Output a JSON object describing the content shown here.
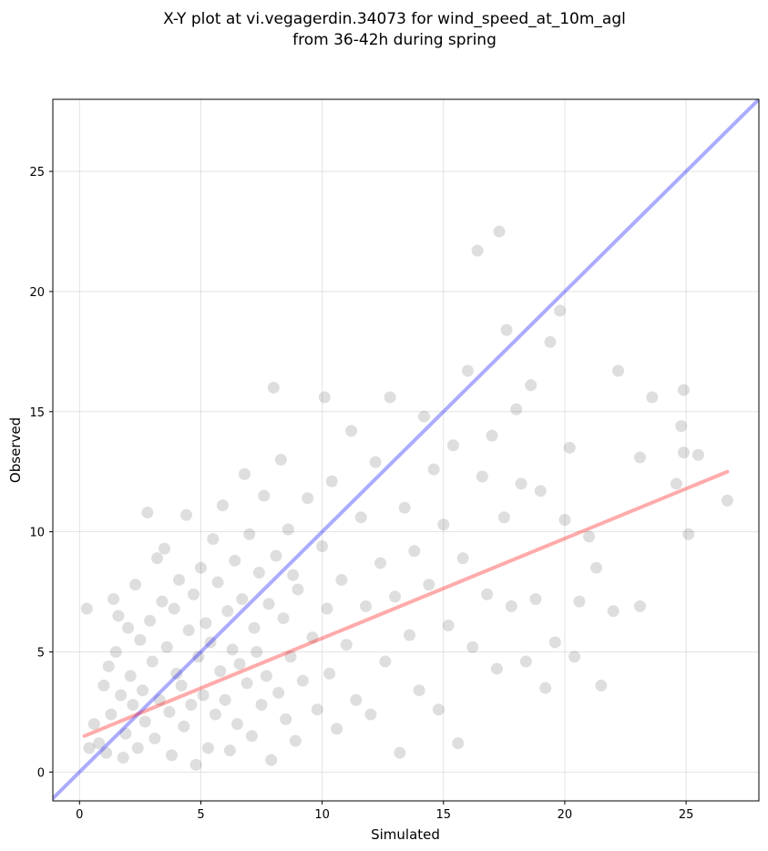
{
  "chart_data": {
    "type": "scatter",
    "title_lines": [
      "X-Y plot at vi.vegagerdin.34073 for wind_speed_at_10m_agl",
      "from 36-42h during spring"
    ],
    "xlabel": "Simulated",
    "ylabel": "Observed",
    "xlim": [
      -1.1,
      28.0
    ],
    "ylim": [
      -1.2,
      28.0
    ],
    "xticks": [
      0,
      5,
      10,
      15,
      20,
      25
    ],
    "yticks": [
      0,
      5,
      10,
      15,
      20,
      25
    ],
    "grid": true,
    "colors": {
      "points": "#000000",
      "identity_line": "#0000ff",
      "fit_line": "#ff0000",
      "grid": "#b0b0b0"
    },
    "identity_line": {
      "x": [
        -1.1,
        28.0
      ],
      "y": [
        -1.1,
        28.0
      ]
    },
    "fit_line": {
      "x": [
        0.2,
        26.7
      ],
      "y": [
        1.5,
        12.5
      ]
    },
    "series": [
      {
        "points": [
          [
            0.3,
            6.8
          ],
          [
            0.4,
            1.0
          ],
          [
            0.6,
            2.0
          ],
          [
            0.8,
            1.2
          ],
          [
            1.0,
            3.6
          ],
          [
            1.1,
            0.8
          ],
          [
            1.2,
            4.4
          ],
          [
            1.3,
            2.4
          ],
          [
            1.4,
            7.2
          ],
          [
            1.5,
            5.0
          ],
          [
            1.6,
            6.5
          ],
          [
            1.7,
            3.2
          ],
          [
            1.8,
            0.6
          ],
          [
            1.9,
            1.6
          ],
          [
            2.0,
            6.0
          ],
          [
            2.1,
            4.0
          ],
          [
            2.2,
            2.8
          ],
          [
            2.3,
            7.8
          ],
          [
            2.4,
            1.0
          ],
          [
            2.5,
            5.5
          ],
          [
            2.6,
            3.4
          ],
          [
            2.7,
            2.1
          ],
          [
            2.8,
            10.8
          ],
          [
            2.9,
            6.3
          ],
          [
            3.0,
            4.6
          ],
          [
            3.1,
            1.4
          ],
          [
            3.2,
            8.9
          ],
          [
            3.3,
            3.0
          ],
          [
            3.4,
            7.1
          ],
          [
            3.5,
            9.3
          ],
          [
            3.6,
            5.2
          ],
          [
            3.7,
            2.5
          ],
          [
            3.8,
            0.7
          ],
          [
            3.9,
            6.8
          ],
          [
            4.0,
            4.1
          ],
          [
            4.1,
            8.0
          ],
          [
            4.2,
            3.6
          ],
          [
            4.3,
            1.9
          ],
          [
            4.4,
            10.7
          ],
          [
            4.5,
            5.9
          ],
          [
            4.6,
            2.8
          ],
          [
            4.7,
            7.4
          ],
          [
            4.8,
            0.3
          ],
          [
            4.9,
            4.8
          ],
          [
            5.0,
            8.5
          ],
          [
            5.1,
            3.2
          ],
          [
            5.2,
            6.2
          ],
          [
            5.3,
            1.0
          ],
          [
            5.4,
            5.4
          ],
          [
            5.5,
            9.7
          ],
          [
            5.6,
            2.4
          ],
          [
            5.7,
            7.9
          ],
          [
            5.8,
            4.2
          ],
          [
            5.9,
            11.1
          ],
          [
            6.0,
            3.0
          ],
          [
            6.1,
            6.7
          ],
          [
            6.2,
            0.9
          ],
          [
            6.3,
            5.1
          ],
          [
            6.4,
            8.8
          ],
          [
            6.5,
            2.0
          ],
          [
            6.6,
            4.5
          ],
          [
            6.7,
            7.2
          ],
          [
            6.8,
            12.4
          ],
          [
            6.9,
            3.7
          ],
          [
            7.0,
            9.9
          ],
          [
            7.1,
            1.5
          ],
          [
            7.2,
            6.0
          ],
          [
            7.3,
            5.0
          ],
          [
            7.4,
            8.3
          ],
          [
            7.5,
            2.8
          ],
          [
            7.6,
            11.5
          ],
          [
            7.7,
            4.0
          ],
          [
            7.8,
            7.0
          ],
          [
            7.9,
            0.5
          ],
          [
            8.0,
            16.0
          ],
          [
            8.1,
            9.0
          ],
          [
            8.2,
            3.3
          ],
          [
            8.3,
            13.0
          ],
          [
            8.4,
            6.4
          ],
          [
            8.5,
            2.2
          ],
          [
            8.6,
            10.1
          ],
          [
            8.7,
            4.8
          ],
          [
            8.8,
            8.2
          ],
          [
            8.9,
            1.3
          ],
          [
            9.0,
            7.6
          ],
          [
            9.2,
            3.8
          ],
          [
            9.4,
            11.4
          ],
          [
            9.6,
            5.6
          ],
          [
            9.8,
            2.6
          ],
          [
            10.0,
            9.4
          ],
          [
            10.1,
            15.6
          ],
          [
            10.2,
            6.8
          ],
          [
            10.3,
            4.1
          ],
          [
            10.4,
            12.1
          ],
          [
            10.6,
            1.8
          ],
          [
            10.8,
            8.0
          ],
          [
            11.0,
            5.3
          ],
          [
            11.2,
            14.2
          ],
          [
            11.4,
            3.0
          ],
          [
            11.6,
            10.6
          ],
          [
            11.8,
            6.9
          ],
          [
            12.0,
            2.4
          ],
          [
            12.2,
            12.9
          ],
          [
            12.4,
            8.7
          ],
          [
            12.6,
            4.6
          ],
          [
            12.8,
            15.6
          ],
          [
            13.0,
            7.3
          ],
          [
            13.2,
            0.8
          ],
          [
            13.4,
            11.0
          ],
          [
            13.6,
            5.7
          ],
          [
            13.8,
            9.2
          ],
          [
            14.0,
            3.4
          ],
          [
            14.2,
            14.8
          ],
          [
            14.4,
            7.8
          ],
          [
            14.6,
            12.6
          ],
          [
            14.8,
            2.6
          ],
          [
            15.0,
            10.3
          ],
          [
            15.2,
            6.1
          ],
          [
            15.4,
            13.6
          ],
          [
            15.6,
            1.2
          ],
          [
            15.8,
            8.9
          ],
          [
            16.0,
            16.7
          ],
          [
            16.2,
            5.2
          ],
          [
            16.4,
            21.7
          ],
          [
            16.6,
            12.3
          ],
          [
            16.8,
            7.4
          ],
          [
            17.0,
            14.0
          ],
          [
            17.2,
            4.3
          ],
          [
            17.3,
            22.5
          ],
          [
            17.5,
            10.6
          ],
          [
            17.6,
            18.4
          ],
          [
            17.8,
            6.9
          ],
          [
            18.0,
            15.1
          ],
          [
            18.2,
            12.0
          ],
          [
            18.4,
            4.6
          ],
          [
            18.6,
            16.1
          ],
          [
            18.8,
            7.2
          ],
          [
            19.0,
            11.7
          ],
          [
            19.2,
            3.5
          ],
          [
            19.4,
            17.9
          ],
          [
            19.6,
            5.4
          ],
          [
            19.8,
            19.2
          ],
          [
            20.0,
            10.5
          ],
          [
            20.2,
            13.5
          ],
          [
            20.4,
            4.8
          ],
          [
            20.6,
            7.1
          ],
          [
            21.0,
            9.8
          ],
          [
            21.3,
            8.5
          ],
          [
            21.5,
            3.6
          ],
          [
            22.0,
            6.7
          ],
          [
            22.2,
            16.7
          ],
          [
            23.1,
            13.1
          ],
          [
            23.1,
            6.9
          ],
          [
            23.6,
            15.6
          ],
          [
            24.6,
            12.0
          ],
          [
            24.8,
            14.4
          ],
          [
            24.9,
            15.9
          ],
          [
            24.9,
            13.3
          ],
          [
            25.1,
            9.9
          ],
          [
            25.5,
            13.2
          ],
          [
            26.7,
            11.3
          ]
        ]
      }
    ]
  }
}
